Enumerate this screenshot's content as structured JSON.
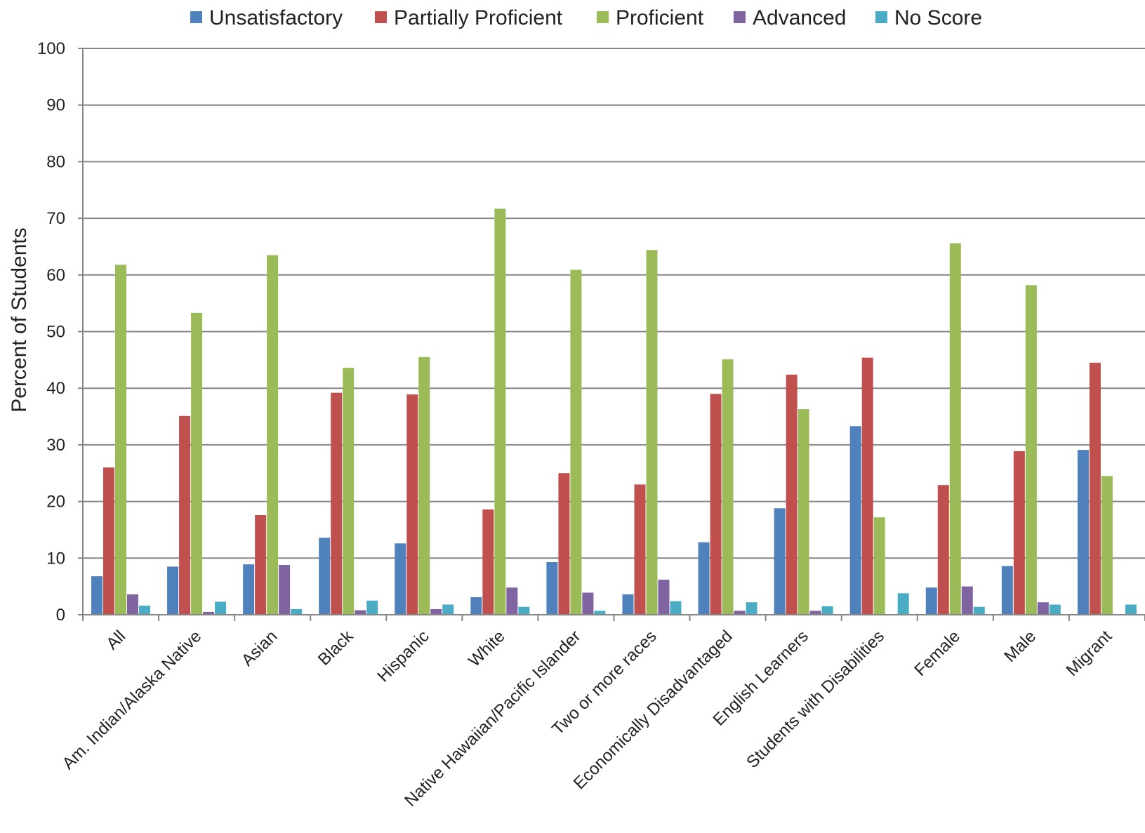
{
  "chart_data": {
    "type": "bar",
    "title": "",
    "xlabel": "",
    "ylabel": "Percent of Students",
    "ylim": [
      0,
      100
    ],
    "yticks": [
      0,
      10,
      20,
      30,
      40,
      50,
      60,
      70,
      80,
      90,
      100
    ],
    "grid": true,
    "legend_position": "top",
    "categories": [
      "All",
      "Am. Indian/Alaska Native",
      "Asian",
      "Black",
      "Hispanic",
      "White",
      "Native Hawaiian/Pacific Islander",
      "Two or more races",
      "Economically Disadvantaged",
      "English Learners",
      "Students with Disabilities",
      "Female",
      "Male",
      "Migrant"
    ],
    "series": [
      {
        "name": "Unsatisfactory",
        "color": "#4f81bd",
        "values": [
          6.8,
          8.5,
          8.9,
          13.6,
          12.6,
          3.1,
          9.3,
          3.6,
          12.8,
          18.8,
          33.3,
          4.8,
          8.6,
          29.1
        ]
      },
      {
        "name": "Partially Proficient",
        "color": "#c0504d",
        "values": [
          26.0,
          35.1,
          17.6,
          39.2,
          38.9,
          18.6,
          25.0,
          23.0,
          39.0,
          42.4,
          45.4,
          22.9,
          28.9,
          44.5
        ]
      },
      {
        "name": "Proficient",
        "color": "#9bbb59",
        "values": [
          61.8,
          53.3,
          63.5,
          43.6,
          45.5,
          71.7,
          60.9,
          64.4,
          45.1,
          36.3,
          17.2,
          65.6,
          58.2,
          24.5
        ]
      },
      {
        "name": "Advanced",
        "color": "#8064a2",
        "values": [
          3.6,
          0.5,
          8.8,
          0.8,
          1.0,
          4.8,
          3.9,
          6.2,
          0.7,
          0.7,
          0.0,
          5.0,
          2.2,
          0.0
        ]
      },
      {
        "name": "No Score",
        "color": "#4bacc6",
        "values": [
          1.6,
          2.3,
          1.0,
          2.5,
          1.8,
          1.4,
          0.7,
          2.4,
          2.2,
          1.5,
          3.8,
          1.4,
          1.8,
          1.8
        ]
      }
    ]
  },
  "colors": {
    "gridline": "#868686",
    "axis": "#868686",
    "background": "#ffffff"
  }
}
